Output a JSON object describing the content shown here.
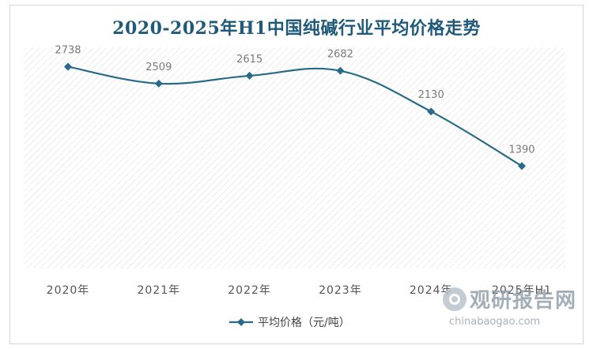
{
  "chart_data": {
    "type": "line",
    "title": "2020-2025年H1中国纯碱行业平均价格走势",
    "categories": [
      "2020年",
      "2021年",
      "2022年",
      "2023年",
      "2024年",
      "2025年H1"
    ],
    "series": [
      {
        "name": "平均价格（元/吨）",
        "values": [
          2738,
          2509,
          2615,
          2682,
          2130,
          1390
        ]
      }
    ],
    "xlabel": "",
    "ylabel": "",
    "ylim": [
      0,
      3000
    ],
    "grid": false,
    "legend": "bottom",
    "colors": {
      "line": "#2a6a89",
      "title": "#1f5a7a",
      "plot_hatch": "#dcdcdc"
    }
  },
  "watermark": {
    "brand": "观研报告网",
    "url": "chinabaogao.com"
  }
}
